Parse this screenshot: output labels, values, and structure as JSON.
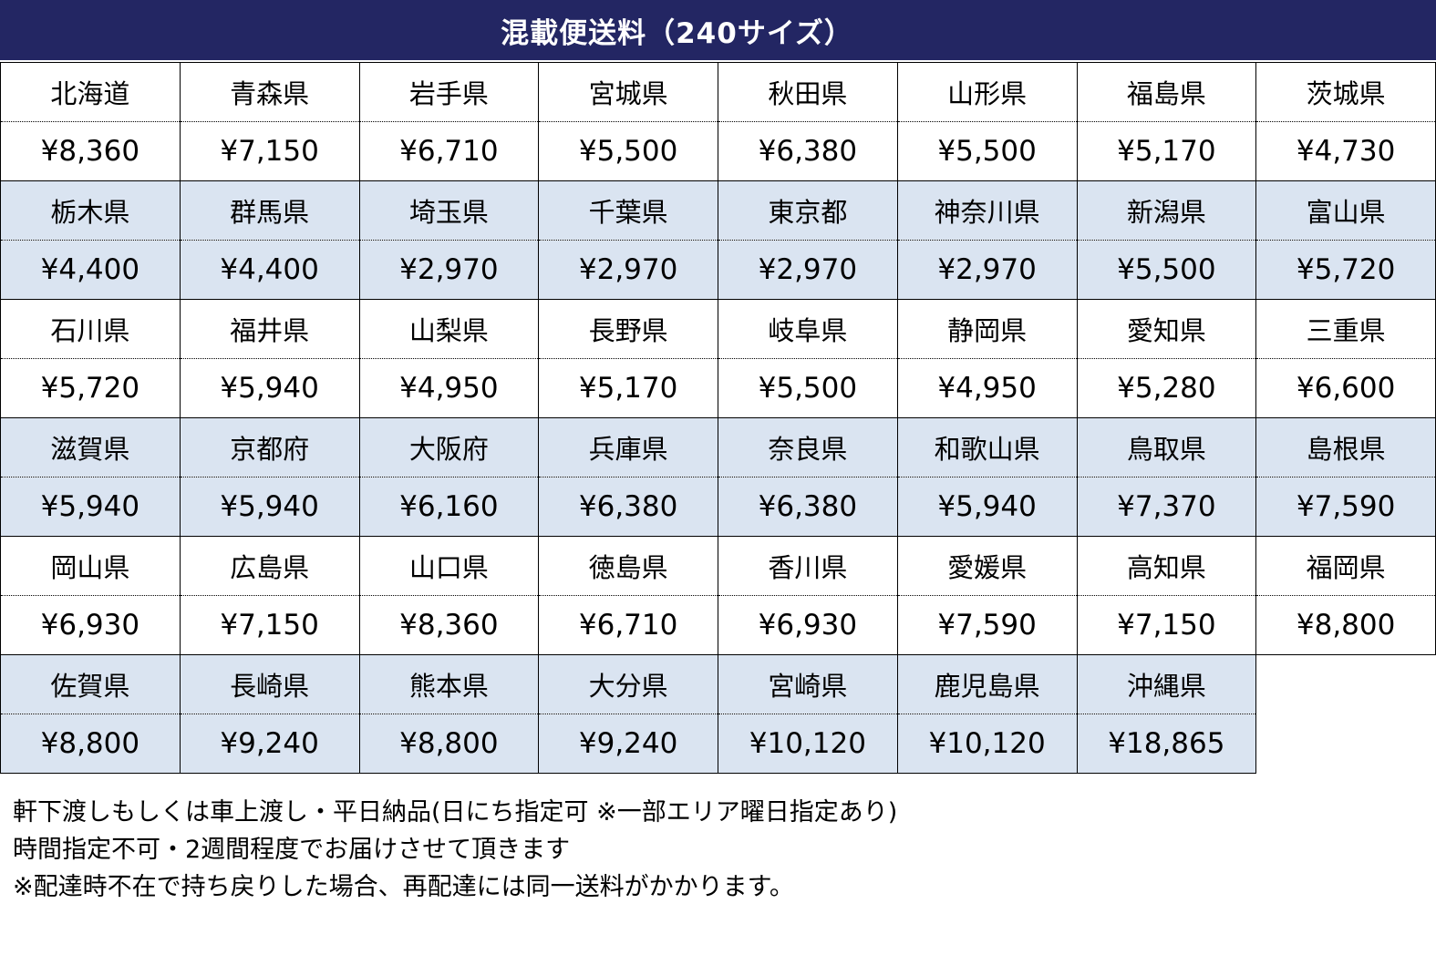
{
  "title": "混載便送料（240サイズ）",
  "colors": {
    "header_bg": "#232663",
    "header_text": "#ffffff",
    "alt_row_bg": "#dae4f1",
    "border": "#000000"
  },
  "table": {
    "columns": 8,
    "groups": [
      {
        "shaded": false,
        "prefectures": [
          "北海道",
          "青森県",
          "岩手県",
          "宮城県",
          "秋田県",
          "山形県",
          "福島県",
          "茨城県"
        ],
        "prices": [
          "¥8,360",
          "¥7,150",
          "¥6,710",
          "¥5,500",
          "¥6,380",
          "¥5,500",
          "¥5,170",
          "¥4,730"
        ]
      },
      {
        "shaded": true,
        "prefectures": [
          "栃木県",
          "群馬県",
          "埼玉県",
          "千葉県",
          "東京都",
          "神奈川県",
          "新潟県",
          "富山県"
        ],
        "prices": [
          "¥4,400",
          "¥4,400",
          "¥2,970",
          "¥2,970",
          "¥2,970",
          "¥2,970",
          "¥5,500",
          "¥5,720"
        ]
      },
      {
        "shaded": false,
        "prefectures": [
          "石川県",
          "福井県",
          "山梨県",
          "長野県",
          "岐阜県",
          "静岡県",
          "愛知県",
          "三重県"
        ],
        "prices": [
          "¥5,720",
          "¥5,940",
          "¥4,950",
          "¥5,170",
          "¥5,500",
          "¥4,950",
          "¥5,280",
          "¥6,600"
        ]
      },
      {
        "shaded": true,
        "prefectures": [
          "滋賀県",
          "京都府",
          "大阪府",
          "兵庫県",
          "奈良県",
          "和歌山県",
          "鳥取県",
          "島根県"
        ],
        "prices": [
          "¥5,940",
          "¥5,940",
          "¥6,160",
          "¥6,380",
          "¥6,380",
          "¥5,940",
          "¥7,370",
          "¥7,590"
        ]
      },
      {
        "shaded": false,
        "prefectures": [
          "岡山県",
          "広島県",
          "山口県",
          "徳島県",
          "香川県",
          "愛媛県",
          "高知県",
          "福岡県"
        ],
        "prices": [
          "¥6,930",
          "¥7,150",
          "¥8,360",
          "¥6,710",
          "¥6,930",
          "¥7,590",
          "¥7,150",
          "¥8,800"
        ]
      },
      {
        "shaded": true,
        "prefectures": [
          "佐賀県",
          "長崎県",
          "熊本県",
          "大分県",
          "宮崎県",
          "鹿児島県",
          "沖縄県"
        ],
        "prices": [
          "¥8,800",
          "¥9,240",
          "¥8,800",
          "¥9,240",
          "¥10,120",
          "¥10,120",
          "¥18,865"
        ]
      }
    ]
  },
  "notes": [
    "軒下渡しもしくは車上渡し・平日納品(日にち指定可 ※一部エリア曜日指定あり)",
    "時間指定不可・2週間程度でお届けさせて頂きます",
    "※配達時不在で持ち戻りした場合、再配達には同一送料がかかります。"
  ]
}
